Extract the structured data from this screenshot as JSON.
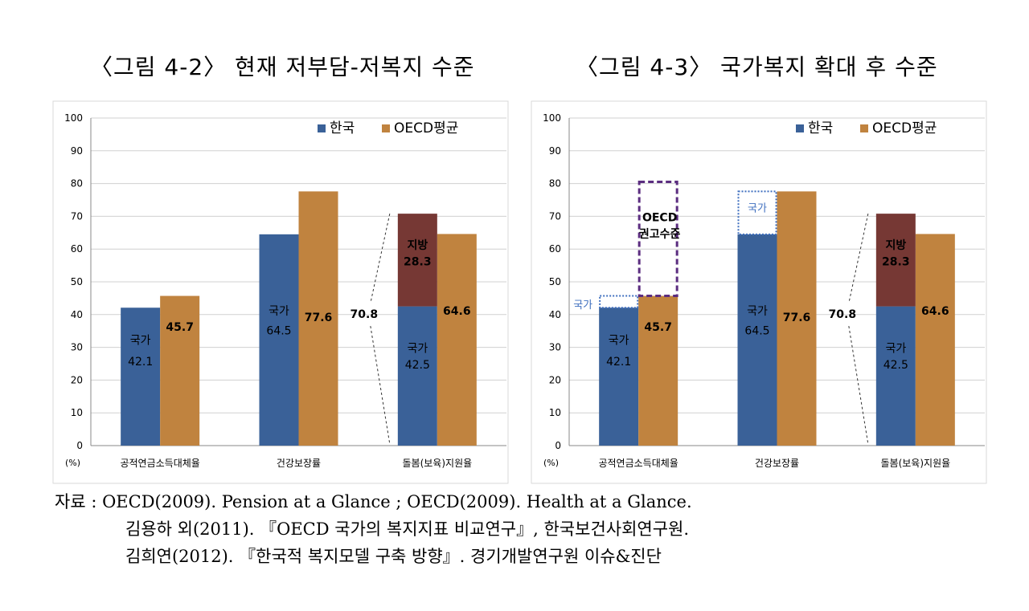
{
  "figures": [
    {
      "title": "〈그림 4-2〉 현재 저부담-저복지 수준"
    },
    {
      "title": "〈그림 4-3〉 국가복지 확대 후 수준"
    }
  ],
  "colors": {
    "korea": "#3a6198",
    "oecd": "#c0833f",
    "local": "#763834",
    "box_blue": "#3f6fbf",
    "box_purple": "#5b2d80"
  },
  "chart_data": [
    {
      "type": "bar",
      "title": "〈그림 4-2〉 현재 저부담-저복지 수준",
      "ylim": [
        0,
        100
      ],
      "yticks": [
        0,
        10,
        20,
        30,
        40,
        50,
        60,
        70,
        80,
        90,
        100
      ],
      "unit_label": "(%)",
      "categories": [
        "공적연금소득대체율",
        "건강보장률",
        "돌봄(보육)지원율"
      ],
      "legend": [
        "한국",
        "OECD평균"
      ],
      "legend_position": "top-right",
      "series": [
        {
          "name": "한국",
          "values": [
            42.1,
            64.5,
            42.5
          ]
        },
        {
          "name": "OECD평균",
          "values": [
            45.7,
            77.6,
            64.6
          ]
        }
      ],
      "stack": {
        "category_index": 2,
        "name": "지방",
        "value": 28.3,
        "total": 70.8
      },
      "bar_labels": {
        "korea": [
          [
            "국가",
            "42.1"
          ],
          [
            "국가",
            "64.5"
          ],
          [
            "국가",
            "42.5"
          ]
        ],
        "oecd": [
          "45.7",
          "77.6",
          "64.6"
        ],
        "stack": [
          "지방",
          "28.3"
        ],
        "total": "70.8"
      }
    },
    {
      "type": "bar",
      "title": "〈그림 4-3〉 국가복지 확대 후 수준",
      "ylim": [
        0,
        100
      ],
      "yticks": [
        0,
        10,
        20,
        30,
        40,
        50,
        60,
        70,
        80,
        90,
        100
      ],
      "unit_label": "(%)",
      "categories": [
        "공적연금소득대체율",
        "건강보장률",
        "돌봄(보육)지원율"
      ],
      "legend": [
        "한국",
        "OECD평균"
      ],
      "legend_position": "top-right",
      "series": [
        {
          "name": "한국",
          "values": [
            42.1,
            64.5,
            42.5
          ]
        },
        {
          "name": "OECD평균",
          "values": [
            45.7,
            77.6,
            64.6
          ]
        }
      ],
      "stack": {
        "category_index": 2,
        "name": "지방",
        "value": 28.3,
        "total": 70.8
      },
      "expansion_boxes": [
        {
          "label": "국가",
          "category_index": 0,
          "from": 42.1,
          "to": 45.7
        },
        {
          "label": "국가",
          "category_index": 1,
          "from": 64.5,
          "to": 77.6
        }
      ],
      "recommendation_box": {
        "label": [
          "OECD",
          "권고수준"
        ],
        "category_index": 0,
        "from": 45.7,
        "to": 80.5
      },
      "bar_labels": {
        "korea": [
          [
            "국가",
            "42.1"
          ],
          [
            "국가",
            "64.5"
          ],
          [
            "국가",
            "42.5"
          ]
        ],
        "oecd": [
          "45.7",
          "77.6",
          "64.6"
        ],
        "stack": [
          "지방",
          "28.3"
        ],
        "total": "70.8"
      }
    }
  ],
  "source": {
    "prefix": "자료 : ",
    "lines": [
      "OECD(2009). Pension at a Glance ; OECD(2009). Health at a Glance.",
      "김용하 외(2011). 『OECD 국가의 복지지표 비교연구』, 한국보건사회연구원.",
      "김희연(2012). 『한국적 복지모델 구축 방향』. 경기개발연구원 이슈&진단"
    ]
  }
}
